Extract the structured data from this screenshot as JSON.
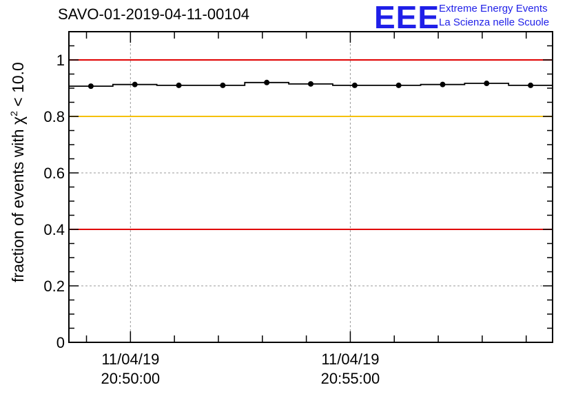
{
  "title": "SAVO-01-2019-04-11-00104",
  "logo": {
    "mark": "EEE",
    "line1": "Extreme Energy Events",
    "line2": "La Scienza nelle Scuole",
    "color": "#1f1fe8"
  },
  "chart_data": {
    "type": "scatter",
    "title": "SAVO-01-2019-04-11-00104",
    "xlabel": "",
    "ylabel_prefix": "fraction of events with ",
    "ylabel_symbol": "χ",
    "ylabel_sup": "2",
    "ylabel_suffix": " < 10.0",
    "ylim": [
      0,
      1.1
    ],
    "yticks": [
      0,
      0.2,
      0.4,
      0.6,
      0.8,
      1
    ],
    "ytick_labels": [
      "0",
      "0.2",
      "0.4",
      "0.6",
      "0.8",
      "1"
    ],
    "xlim_minutes": [
      -1.4,
      9.6
    ],
    "xticks": [
      {
        "minute": 0,
        "date": "11/04/19",
        "time": "20:50:00"
      },
      {
        "minute": 5,
        "date": "11/04/19",
        "time": "20:55:00"
      }
    ],
    "grid": true,
    "reference_lines": [
      {
        "y": 1.0,
        "color": "#e00000"
      },
      {
        "y": 0.8,
        "color": "#f5c000"
      },
      {
        "y": 0.4,
        "color": "#e00000"
      }
    ],
    "bin_width_minutes": 1,
    "points": [
      {
        "x": -0.9,
        "y": 0.907
      },
      {
        "x": 0.1,
        "y": 0.913
      },
      {
        "x": 1.1,
        "y": 0.91
      },
      {
        "x": 2.1,
        "y": 0.91
      },
      {
        "x": 3.1,
        "y": 0.92
      },
      {
        "x": 4.1,
        "y": 0.915
      },
      {
        "x": 5.1,
        "y": 0.91
      },
      {
        "x": 6.1,
        "y": 0.91
      },
      {
        "x": 7.1,
        "y": 0.913
      },
      {
        "x": 8.1,
        "y": 0.917
      },
      {
        "x": 9.1,
        "y": 0.91
      }
    ]
  }
}
